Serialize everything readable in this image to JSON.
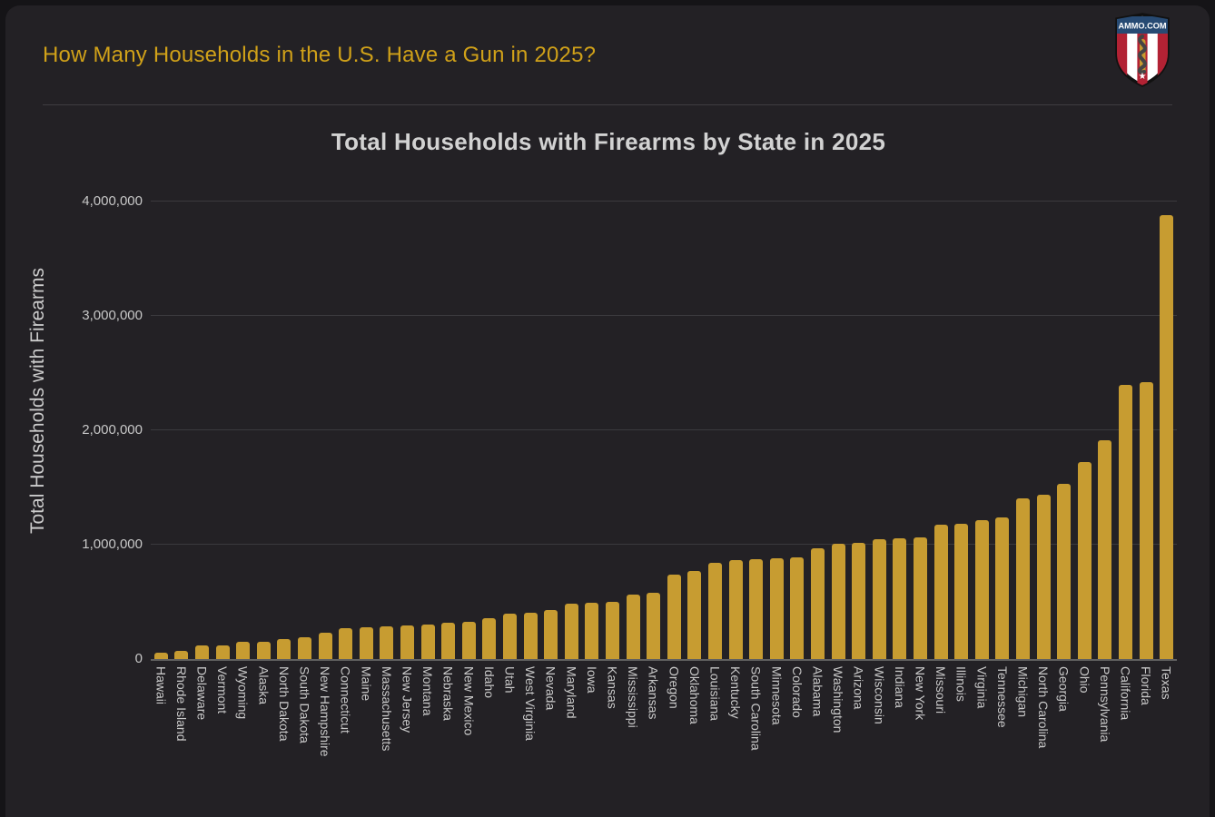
{
  "page": {
    "header_title": "How Many Households in the U.S. Have a Gun in 2025?"
  },
  "logo": {
    "text": "AMMO.COM",
    "chief_color": "#274a73",
    "stripe_red": "#b22234",
    "bullet_gold": "#c79a2e"
  },
  "chart": {
    "title": "Total Households with Firearms by State in 2025",
    "y_axis_title": "Total Households with Firearms",
    "y_ticks": [
      {
        "label": "4,000,000",
        "value": 4000000
      },
      {
        "label": "3,000,000",
        "value": 3000000
      },
      {
        "label": "2,000,000",
        "value": 2000000
      },
      {
        "label": "1,000,000",
        "value": 1000000
      },
      {
        "label": "0",
        "value": 0
      }
    ]
  },
  "chart_data": {
    "type": "bar",
    "title": "Total Households with Firearms by State in 2025",
    "xlabel": "",
    "ylabel": "Total Households with Firearms",
    "ylim": [
      0,
      4000000
    ],
    "grid": "horizontal",
    "legend": false,
    "bar_color": "#c79c31",
    "categories": [
      "Hawaii",
      "Rhode Island",
      "Delaware",
      "Vermont",
      "Wyoming",
      "Alaska",
      "North Dakota",
      "South Dakota",
      "New Hampshire",
      "Connecticut",
      "Maine",
      "Massachusetts",
      "New Jersey",
      "Montana",
      "Nebraska",
      "New Mexico",
      "Idaho",
      "Utah",
      "West Virginia",
      "Nevada",
      "Maryland",
      "Iowa",
      "Kansas",
      "Mississippi",
      "Arkansas",
      "Oregon",
      "Oklahoma",
      "Louisiana",
      "Kentucky",
      "South Carolina",
      "Minnesota",
      "Colorado",
      "Alabama",
      "Washington",
      "Arizona",
      "Wisconsin",
      "Indiana",
      "New York",
      "Missouri",
      "Illinois",
      "Virginia",
      "Tennessee",
      "Michigan",
      "North Carolina",
      "Georgia",
      "Ohio",
      "Pennsylvania",
      "California",
      "Florida",
      "Texas"
    ],
    "values": [
      55000,
      70000,
      118000,
      122000,
      148000,
      153000,
      175000,
      190000,
      228000,
      270000,
      280000,
      287000,
      297000,
      305000,
      318000,
      326000,
      360000,
      400000,
      405000,
      425000,
      485000,
      492000,
      503000,
      565000,
      582000,
      740000,
      768000,
      842000,
      868000,
      875000,
      883000,
      890000,
      965000,
      1006000,
      1015000,
      1045000,
      1055000,
      1062000,
      1172000,
      1186000,
      1218000,
      1238000,
      1405000,
      1440000,
      1532000,
      1723000,
      1916000,
      2398000,
      2420000,
      3882000
    ]
  }
}
